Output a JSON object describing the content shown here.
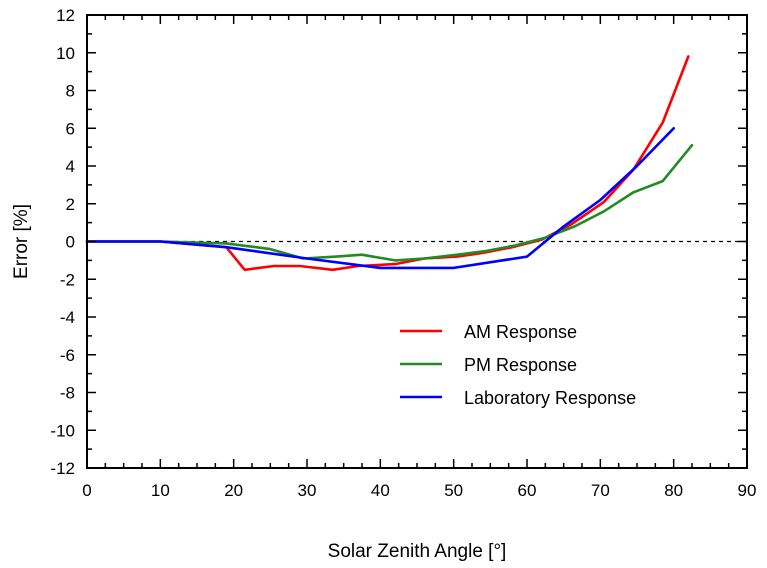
{
  "chart_data": {
    "type": "line",
    "title": "",
    "xlabel": "Solar Zenith Angle [°]",
    "ylabel": "Error [%]",
    "xlim": [
      0,
      90
    ],
    "ylim": [
      -12,
      12
    ],
    "xticks": [
      0,
      10,
      20,
      30,
      40,
      50,
      60,
      70,
      80,
      90
    ],
    "yticks": [
      12,
      10,
      8,
      6,
      4,
      2,
      0,
      -2,
      -4,
      -6,
      -8,
      -10,
      -12
    ],
    "grid": false,
    "legend_position": "lower-right",
    "reference_line": {
      "y": 0,
      "style": "dashed"
    },
    "series": [
      {
        "name": "AM Response",
        "color": "#ff0000",
        "x": [
          0,
          10,
          19,
          21.5,
          25.5,
          29,
          33.5,
          37,
          42,
          46,
          50.5,
          54,
          58,
          62,
          66,
          70.5,
          74.5,
          78.5,
          82
        ],
        "y": [
          0,
          0,
          -0.3,
          -1.5,
          -1.3,
          -1.3,
          -1.5,
          -1.3,
          -1.2,
          -0.9,
          -0.8,
          -0.6,
          -0.3,
          0.1,
          0.9,
          2.1,
          3.8,
          6.3,
          9.8
        ]
      },
      {
        "name": "PM Response",
        "color": "#228b22",
        "x": [
          0,
          10,
          19,
          25,
          29.5,
          34,
          37.5,
          42,
          46,
          50.5,
          54.5,
          58.5,
          62.5,
          66.5,
          70.5,
          74.5,
          78.5,
          82.5
        ],
        "y": [
          0,
          0,
          -0.1,
          -0.4,
          -0.9,
          -0.8,
          -0.7,
          -1.0,
          -0.9,
          -0.7,
          -0.5,
          -0.2,
          0.2,
          0.8,
          1.6,
          2.6,
          3.2,
          5.1
        ]
      },
      {
        "name": "Laboratory Response",
        "color": "#0000ff",
        "x": [
          0,
          10,
          19,
          30,
          40,
          50,
          60,
          65,
          70,
          75,
          80
        ],
        "y": [
          0,
          0,
          -0.3,
          -0.9,
          -1.4,
          -1.4,
          -0.8,
          0.8,
          2.2,
          4.0,
          6.0
        ]
      }
    ]
  }
}
